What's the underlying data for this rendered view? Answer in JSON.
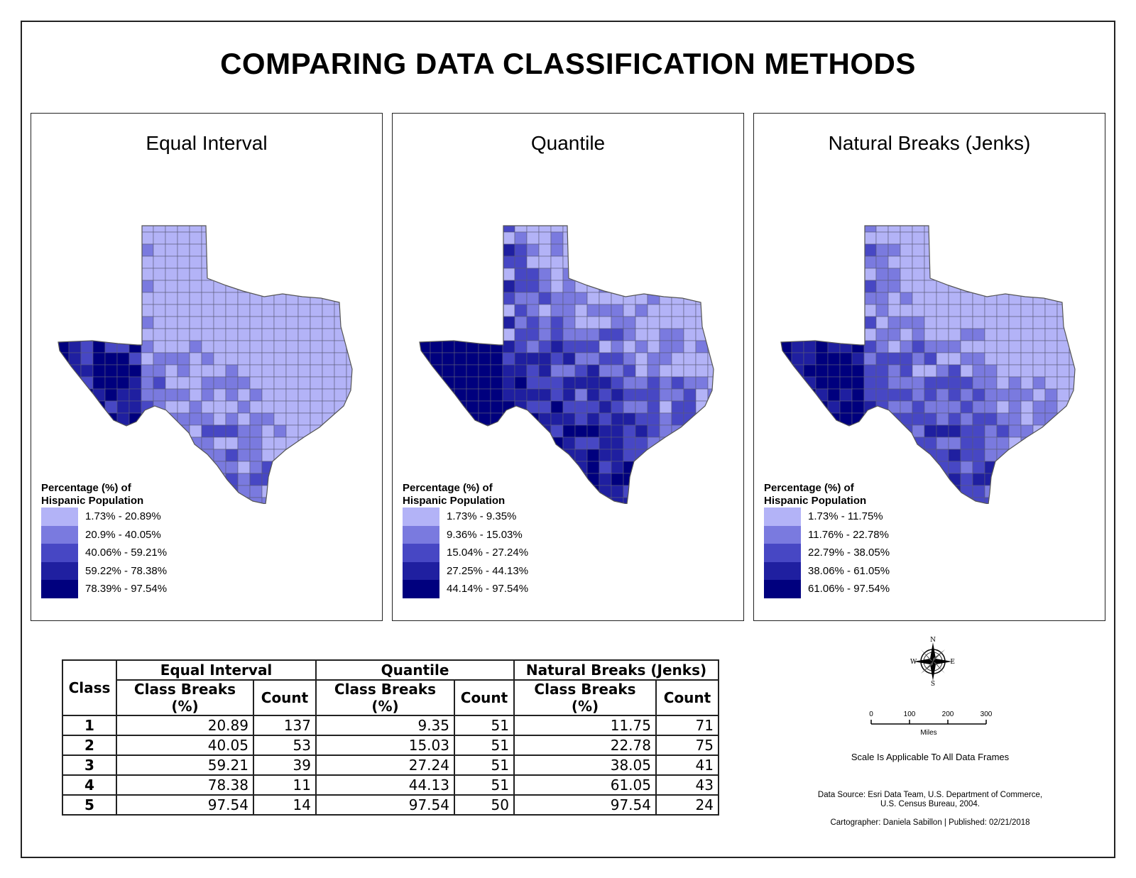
{
  "title": "COMPARING DATA CLASSIFICATION METHODS",
  "legend_title_line1": "Percentage (%) of",
  "legend_title_line2": "Hispanic Population",
  "colors": [
    "#b3b3f7",
    "#7a7adf",
    "#4747c4",
    "#1f1fa0",
    "#00007e"
  ],
  "panels": [
    {
      "title": "Equal Interval",
      "legend": [
        "1.73% - 20.89%",
        "20.9% - 40.05%",
        "40.06% - 59.21%",
        "59.22% - 78.38%",
        "78.39% - 97.54%"
      ]
    },
    {
      "title": "Quantile",
      "legend": [
        "1.73% - 9.35%",
        "9.36% - 15.03%",
        "15.04% - 27.24%",
        "27.25% - 44.13%",
        "44.14% - 97.54%"
      ]
    },
    {
      "title": "Natural Breaks (Jenks)",
      "legend": [
        "1.73% - 11.75%",
        "11.76% - 22.78%",
        "22.79% - 38.05%",
        "38.06% - 61.05%",
        "61.06% - 97.54%"
      ]
    }
  ],
  "table": {
    "class_header": "Class",
    "group_headers": [
      "Equal Interval",
      "Quantile",
      "Natural Breaks (Jenks)"
    ],
    "sub_headers": [
      "Class Breaks (%)",
      "Count"
    ],
    "rows": [
      {
        "cls": "1",
        "vals": [
          "20.89",
          "137",
          "9.35",
          "51",
          "11.75",
          "71"
        ]
      },
      {
        "cls": "2",
        "vals": [
          "40.05",
          "53",
          "15.03",
          "51",
          "22.78",
          "75"
        ]
      },
      {
        "cls": "3",
        "vals": [
          "59.21",
          "39",
          "27.24",
          "51",
          "38.05",
          "41"
        ]
      },
      {
        "cls": "4",
        "vals": [
          "78.38",
          "11",
          "44.13",
          "51",
          "61.05",
          "43"
        ]
      },
      {
        "cls": "5",
        "vals": [
          "97.54",
          "14",
          "97.54",
          "50",
          "97.54",
          "24"
        ]
      }
    ]
  },
  "compass": {
    "n": "N",
    "s": "S",
    "e": "E",
    "w": "W"
  },
  "scale": {
    "ticks": [
      "0",
      "100",
      "200",
      "300"
    ],
    "unit": "Miles",
    "note": "Scale Is Applicable To All Data Frames"
  },
  "source_line1": "Data Source: Esri Data Team, U.S. Department of Commerce,",
  "source_line2": "U.S. Census Bureau, 2004.",
  "credit": "Cartographer: Daniela Sabillon  |  Published: 02/21/2018"
}
